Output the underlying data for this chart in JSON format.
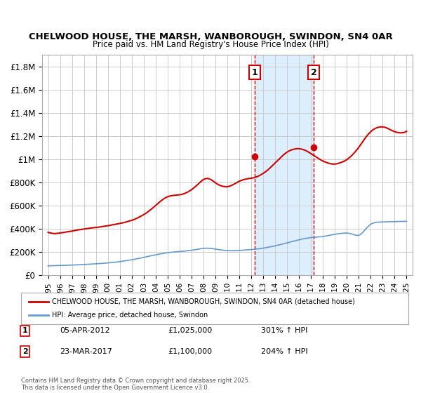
{
  "title": "CHELWOOD HOUSE, THE MARSH, WANBOROUGH, SWINDON, SN4 0AR",
  "subtitle": "Price paid vs. HM Land Registry's House Price Index (HPI)",
  "background_color": "#ffffff",
  "plot_bg_color": "#ffffff",
  "grid_color": "#cccccc",
  "red_line_color": "#cc0000",
  "blue_line_color": "#6699cc",
  "marker_color": "#cc0000",
  "annotation_bg": "#ddeeff",
  "annotation_border": "#cc0000",
  "sale1_date": 2012.27,
  "sale1_price": 1025000,
  "sale1_label": "1",
  "sale1_text": "05-APR-2012    £1,025,000    301% ↑ HPI",
  "sale2_date": 2017.23,
  "sale2_price": 1100000,
  "sale2_label": "2",
  "sale2_text": "23-MAR-2017    £1,100,000    204% ↑ HPI",
  "legend_line1": "CHELWOOD HOUSE, THE MARSH, WANBOROUGH, SWINDON, SN4 0AR (detached house)",
  "legend_line2": "HPI: Average price, detached house, Swindon",
  "footer": "Contains HM Land Registry data © Crown copyright and database right 2025.\nThis data is licensed under the Open Government Licence v3.0.",
  "ylim": [
    0,
    1900000
  ],
  "xlim": [
    1994.5,
    2025.5
  ],
  "yticks": [
    0,
    200000,
    400000,
    600000,
    800000,
    1000000,
    1200000,
    1400000,
    1600000,
    1800000
  ],
  "ytick_labels": [
    "£0",
    "£200K",
    "£400K",
    "£600K",
    "£800K",
    "£1M",
    "£1.2M",
    "£1.4M",
    "£1.6M",
    "£1.8M"
  ],
  "xticks": [
    1995,
    1996,
    1997,
    1998,
    1999,
    2000,
    2001,
    2002,
    2003,
    2004,
    2005,
    2006,
    2007,
    2008,
    2009,
    2010,
    2011,
    2012,
    2013,
    2014,
    2015,
    2016,
    2017,
    2018,
    2019,
    2020,
    2021,
    2022,
    2023,
    2024,
    2025
  ],
  "red_x": [
    1995.0,
    1995.1,
    1995.3,
    1995.5,
    1995.7,
    1995.9,
    1996.1,
    1996.3,
    1996.5,
    1996.7,
    1996.9,
    1997.1,
    1997.3,
    1997.5,
    1997.7,
    1997.9,
    1998.1,
    1998.3,
    1998.5,
    1998.7,
    1998.9,
    1999.1,
    1999.3,
    1999.5,
    1999.7,
    1999.9,
    2000.1,
    2000.3,
    2000.5,
    2000.7,
    2000.9,
    2001.1,
    2001.3,
    2001.5,
    2001.7,
    2001.9,
    2002.1,
    2002.3,
    2002.5,
    2002.7,
    2002.9,
    2003.1,
    2003.3,
    2003.5,
    2003.7,
    2003.9,
    2004.1,
    2004.3,
    2004.5,
    2004.7,
    2004.9,
    2005.1,
    2005.3,
    2005.5,
    2005.7,
    2005.9,
    2006.1,
    2006.3,
    2006.5,
    2006.7,
    2006.9,
    2007.1,
    2007.3,
    2007.5,
    2007.7,
    2007.9,
    2008.1,
    2008.3,
    2008.5,
    2008.7,
    2008.9,
    2009.1,
    2009.3,
    2009.5,
    2009.7,
    2009.9,
    2010.1,
    2010.3,
    2010.5,
    2010.7,
    2010.9,
    2011.1,
    2011.3,
    2011.5,
    2011.7,
    2011.9,
    2012.1,
    2012.3,
    2012.5,
    2012.7,
    2012.9,
    2013.1,
    2013.3,
    2013.5,
    2013.7,
    2013.9,
    2014.1,
    2014.3,
    2014.5,
    2014.7,
    2014.9,
    2015.1,
    2015.3,
    2015.5,
    2015.7,
    2015.9,
    2016.1,
    2016.3,
    2016.5,
    2016.7,
    2016.9,
    2017.1,
    2017.3,
    2017.5,
    2017.7,
    2017.9,
    2018.1,
    2018.3,
    2018.5,
    2018.7,
    2018.9,
    2019.1,
    2019.3,
    2019.5,
    2019.7,
    2019.9,
    2020.1,
    2020.3,
    2020.5,
    2020.7,
    2020.9,
    2021.1,
    2021.3,
    2021.5,
    2021.7,
    2021.9,
    2022.1,
    2022.3,
    2022.5,
    2022.7,
    2022.9,
    2023.1,
    2023.3,
    2023.5,
    2023.7,
    2023.9,
    2024.1,
    2024.3,
    2024.5,
    2024.7,
    2024.9,
    2025.0
  ],
  "red_y": [
    370000,
    365000,
    362000,
    358000,
    360000,
    362000,
    365000,
    368000,
    372000,
    375000,
    378000,
    382000,
    386000,
    390000,
    393000,
    396000,
    399000,
    402000,
    405000,
    408000,
    410000,
    412000,
    415000,
    418000,
    422000,
    425000,
    428000,
    432000,
    436000,
    440000,
    444000,
    448000,
    452000,
    458000,
    464000,
    470000,
    476000,
    485000,
    494000,
    505000,
    516000,
    528000,
    542000,
    558000,
    575000,
    592000,
    610000,
    628000,
    645000,
    660000,
    672000,
    680000,
    685000,
    688000,
    690000,
    692000,
    695000,
    700000,
    708000,
    718000,
    730000,
    745000,
    762000,
    780000,
    800000,
    818000,
    830000,
    835000,
    830000,
    820000,
    805000,
    790000,
    778000,
    770000,
    765000,
    762000,
    765000,
    772000,
    782000,
    793000,
    805000,
    815000,
    822000,
    828000,
    832000,
    835000,
    838000,
    843000,
    850000,
    860000,
    872000,
    885000,
    900000,
    918000,
    938000,
    958000,
    978000,
    998000,
    1018000,
    1038000,
    1055000,
    1068000,
    1078000,
    1085000,
    1090000,
    1092000,
    1090000,
    1085000,
    1078000,
    1068000,
    1055000,
    1042000,
    1028000,
    1015000,
    1002000,
    990000,
    980000,
    972000,
    965000,
    960000,
    958000,
    960000,
    965000,
    972000,
    980000,
    990000,
    1005000,
    1022000,
    1042000,
    1065000,
    1090000,
    1118000,
    1148000,
    1178000,
    1205000,
    1228000,
    1248000,
    1262000,
    1272000,
    1278000,
    1280000,
    1278000,
    1272000,
    1262000,
    1252000,
    1242000,
    1235000,
    1230000,
    1228000,
    1230000,
    1235000,
    1242000
  ],
  "blue_x": [
    1995.0,
    1995.1,
    1995.3,
    1995.5,
    1995.7,
    1995.9,
    1996.1,
    1996.3,
    1996.5,
    1996.7,
    1996.9,
    1997.1,
    1997.3,
    1997.5,
    1997.7,
    1997.9,
    1998.1,
    1998.3,
    1998.5,
    1998.7,
    1998.9,
    1999.1,
    1999.3,
    1999.5,
    1999.7,
    1999.9,
    2000.1,
    2000.3,
    2000.5,
    2000.7,
    2000.9,
    2001.1,
    2001.3,
    2001.5,
    2001.7,
    2001.9,
    2002.1,
    2002.3,
    2002.5,
    2002.7,
    2002.9,
    2003.1,
    2003.3,
    2003.5,
    2003.7,
    2003.9,
    2004.1,
    2004.3,
    2004.5,
    2004.7,
    2004.9,
    2005.1,
    2005.3,
    2005.5,
    2005.7,
    2005.9,
    2006.1,
    2006.3,
    2006.5,
    2006.7,
    2006.9,
    2007.1,
    2007.3,
    2007.5,
    2007.7,
    2007.9,
    2008.1,
    2008.3,
    2008.5,
    2008.7,
    2008.9,
    2009.1,
    2009.3,
    2009.5,
    2009.7,
    2009.9,
    2010.1,
    2010.3,
    2010.5,
    2010.7,
    2010.9,
    2011.1,
    2011.3,
    2011.5,
    2011.7,
    2011.9,
    2012.1,
    2012.3,
    2012.5,
    2012.7,
    2012.9,
    2013.1,
    2013.3,
    2013.5,
    2013.7,
    2013.9,
    2014.1,
    2014.3,
    2014.5,
    2014.7,
    2014.9,
    2015.1,
    2015.3,
    2015.5,
    2015.7,
    2015.9,
    2016.1,
    2016.3,
    2016.5,
    2016.7,
    2016.9,
    2017.1,
    2017.3,
    2017.5,
    2017.7,
    2017.9,
    2018.1,
    2018.3,
    2018.5,
    2018.7,
    2018.9,
    2019.1,
    2019.3,
    2019.5,
    2019.7,
    2019.9,
    2020.1,
    2020.3,
    2020.5,
    2020.7,
    2020.9,
    2021.1,
    2021.3,
    2021.5,
    2021.7,
    2021.9,
    2022.1,
    2022.3,
    2022.5,
    2022.7,
    2022.9,
    2023.1,
    2023.3,
    2023.5,
    2023.7,
    2023.9,
    2024.1,
    2024.3,
    2024.5,
    2024.7,
    2024.9,
    2025.0
  ],
  "blue_y": [
    80000,
    80500,
    81000,
    81500,
    82000,
    82500,
    83200,
    83900,
    84600,
    85400,
    86200,
    87100,
    88000,
    89000,
    90000,
    91000,
    92100,
    93200,
    94400,
    95600,
    96800,
    98100,
    99500,
    101000,
    102500,
    104000,
    106000,
    108000,
    110000,
    112500,
    115000,
    118000,
    121000,
    124000,
    127000,
    130500,
    134000,
    138000,
    142000,
    146500,
    151000,
    155500,
    160000,
    164500,
    169000,
    173000,
    177000,
    181000,
    185000,
    188500,
    192000,
    195000,
    197500,
    199500,
    201000,
    202500,
    204000,
    206000,
    208000,
    210500,
    213000,
    216000,
    219500,
    223000,
    226500,
    229500,
    231500,
    232500,
    231500,
    229500,
    226500,
    223000,
    219500,
    216500,
    214000,
    212000,
    211000,
    210500,
    210500,
    211000,
    212000,
    213500,
    215000,
    216500,
    218000,
    219500,
    221000,
    223000,
    225500,
    228000,
    231000,
    234500,
    238000,
    242000,
    246000,
    250500,
    255000,
    260000,
    265000,
    270000,
    275500,
    281000,
    286500,
    292000,
    297000,
    302000,
    307000,
    312000,
    316000,
    319500,
    322500,
    325000,
    327000,
    328500,
    330000,
    332000,
    335000,
    338500,
    342500,
    347000,
    351000,
    354500,
    357500,
    360000,
    362000,
    363500,
    362000,
    358000,
    352000,
    346000,
    342000,
    348000,
    365000,
    388000,
    412000,
    432000,
    445000,
    452000,
    456000,
    458000,
    459000,
    459500,
    460000,
    460500,
    461000,
    461500,
    462000,
    462500,
    463000,
    463500,
    464000,
    464500
  ]
}
